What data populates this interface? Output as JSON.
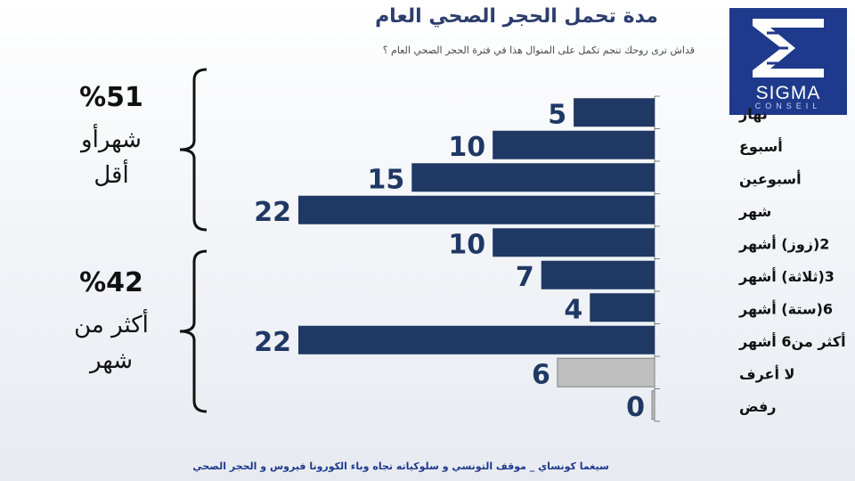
{
  "chart_data": {
    "type": "bar",
    "orientation": "horizontal",
    "title": "مدة تحمل الحجر الصحي العام",
    "subtitle": "قداش ترى روحك تنجم تكمل على المنوال هذا في فترة  الحجر الصحي العام ؟",
    "categories": [
      "نهار",
      "أسبوع",
      "أسبوعين",
      "شهر",
      "2(زوز) أشهر",
      "3(ثلاثة) أشهر",
      "6(ستة) أشهر",
      "أكثر من6 أشهر",
      "لا أعرف",
      "رفض"
    ],
    "values": [
      5,
      10,
      15,
      22,
      10,
      7,
      4,
      22,
      6,
      0
    ],
    "bar_colors": [
      "#1f3864",
      "#1f3864",
      "#1f3864",
      "#1f3864",
      "#1f3864",
      "#1f3864",
      "#1f3864",
      "#1f3864",
      "#bfbfbf",
      "#bfbfbf"
    ],
    "xlim": [
      0,
      22
    ],
    "grid": false,
    "legend": "none"
  },
  "groups": [
    {
      "percent": "%51",
      "text": [
        "شهرأو",
        "أقل"
      ]
    },
    {
      "percent": "%42",
      "text": [
        "أكثر من",
        "شهر"
      ]
    }
  ],
  "logo": {
    "word": "SIGMA",
    "sub": "CONSEIL"
  },
  "footer": "سيغما كونساي   _   موقف التونسي و سلوكياته تجاه وباء الكورونا فيروس و الحجر الصحي",
  "colors": {
    "bar": "#1f3864",
    "bar_other": "#bfbfbf",
    "value_text": "#1f3864",
    "logo_bg": "#1f3a8c"
  }
}
